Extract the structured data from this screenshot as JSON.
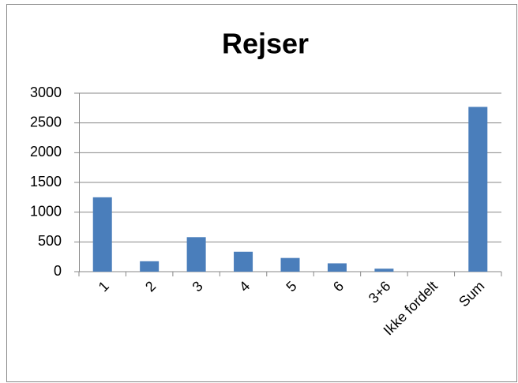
{
  "chart_data": {
    "type": "bar",
    "title": "Rejser",
    "categories": [
      "1",
      "2",
      "3",
      "4",
      "5",
      "6",
      "3+6",
      "Ikke fordelt",
      "Sum"
    ],
    "values": [
      1250,
      175,
      580,
      335,
      230,
      140,
      50,
      0,
      2770
    ],
    "color": "#4a7ebb",
    "ylim": [
      0,
      3000
    ],
    "yticks": [
      0,
      500,
      1000,
      1500,
      2000,
      2500,
      3000
    ],
    "grid": true
  }
}
